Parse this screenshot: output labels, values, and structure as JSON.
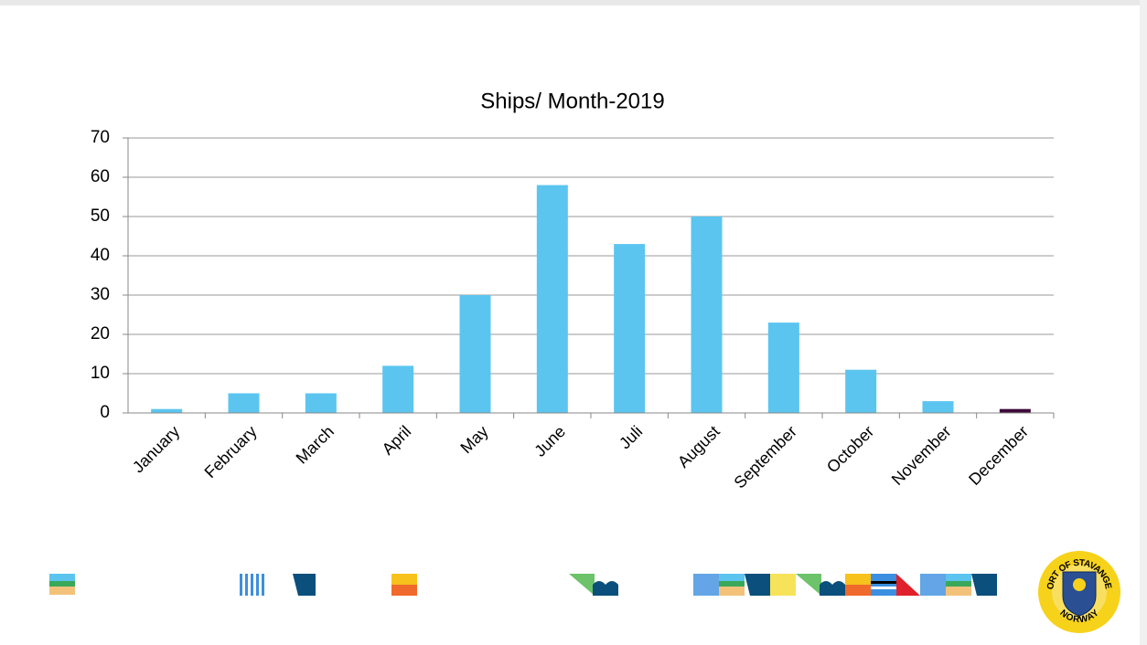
{
  "chart_data": {
    "type": "bar",
    "title": "Ships/ Month-2019",
    "categories": [
      "January",
      "February",
      "March",
      "April",
      "May",
      "June",
      "Juli",
      "August",
      "September",
      "October",
      "November",
      "December"
    ],
    "values": [
      1,
      5,
      5,
      12,
      30,
      58,
      43,
      50,
      23,
      11,
      3,
      1
    ],
    "colors": [
      "#5bc5f0",
      "#5bc5f0",
      "#5bc5f0",
      "#5bc5f0",
      "#5bc5f0",
      "#5bc5f0",
      "#5bc5f0",
      "#5bc5f0",
      "#5bc5f0",
      "#5bc5f0",
      "#5bc5f0",
      "#3d0a3a"
    ],
    "ylim": [
      0,
      70
    ],
    "yticks": [
      0,
      10,
      20,
      30,
      40,
      50,
      60,
      70
    ],
    "grid": true
  },
  "logo": {
    "top": "PORT OF STAVANGER",
    "bottom": "NORWAY"
  }
}
